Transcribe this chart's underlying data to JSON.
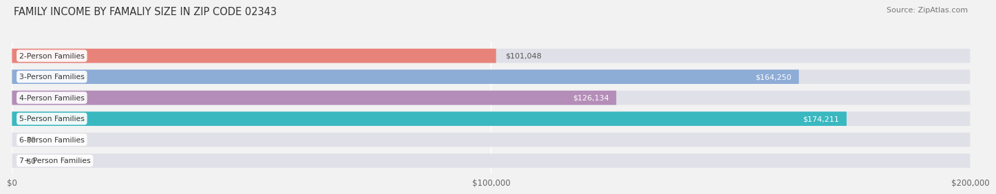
{
  "title": "FAMILY INCOME BY FAMALIY SIZE IN ZIP CODE 02343",
  "source": "Source: ZipAtlas.com",
  "categories": [
    "2-Person Families",
    "3-Person Families",
    "4-Person Families",
    "5-Person Families",
    "6-Person Families",
    "7+ Person Families"
  ],
  "values": [
    101048,
    164250,
    126134,
    174211,
    0,
    0
  ],
  "bar_colors": [
    "#e8837a",
    "#8dacd6",
    "#b48db8",
    "#3ab8c0",
    "#a0a8e0",
    "#f5a8bb"
  ],
  "value_labels": [
    "$101,048",
    "$164,250",
    "$126,134",
    "$174,211",
    "$0",
    "$0"
  ],
  "value_label_inside": [
    false,
    true,
    true,
    true,
    false,
    false
  ],
  "xmax": 200000,
  "xticks": [
    0,
    100000,
    200000
  ],
  "xticklabels": [
    "$0",
    "$100,000",
    "$200,000"
  ],
  "background_color": "#f2f2f2",
  "bar_bg_color": "#e0e0e8",
  "title_fontsize": 10.5,
  "source_fontsize": 8,
  "figsize": [
    14.06,
    3.05
  ]
}
